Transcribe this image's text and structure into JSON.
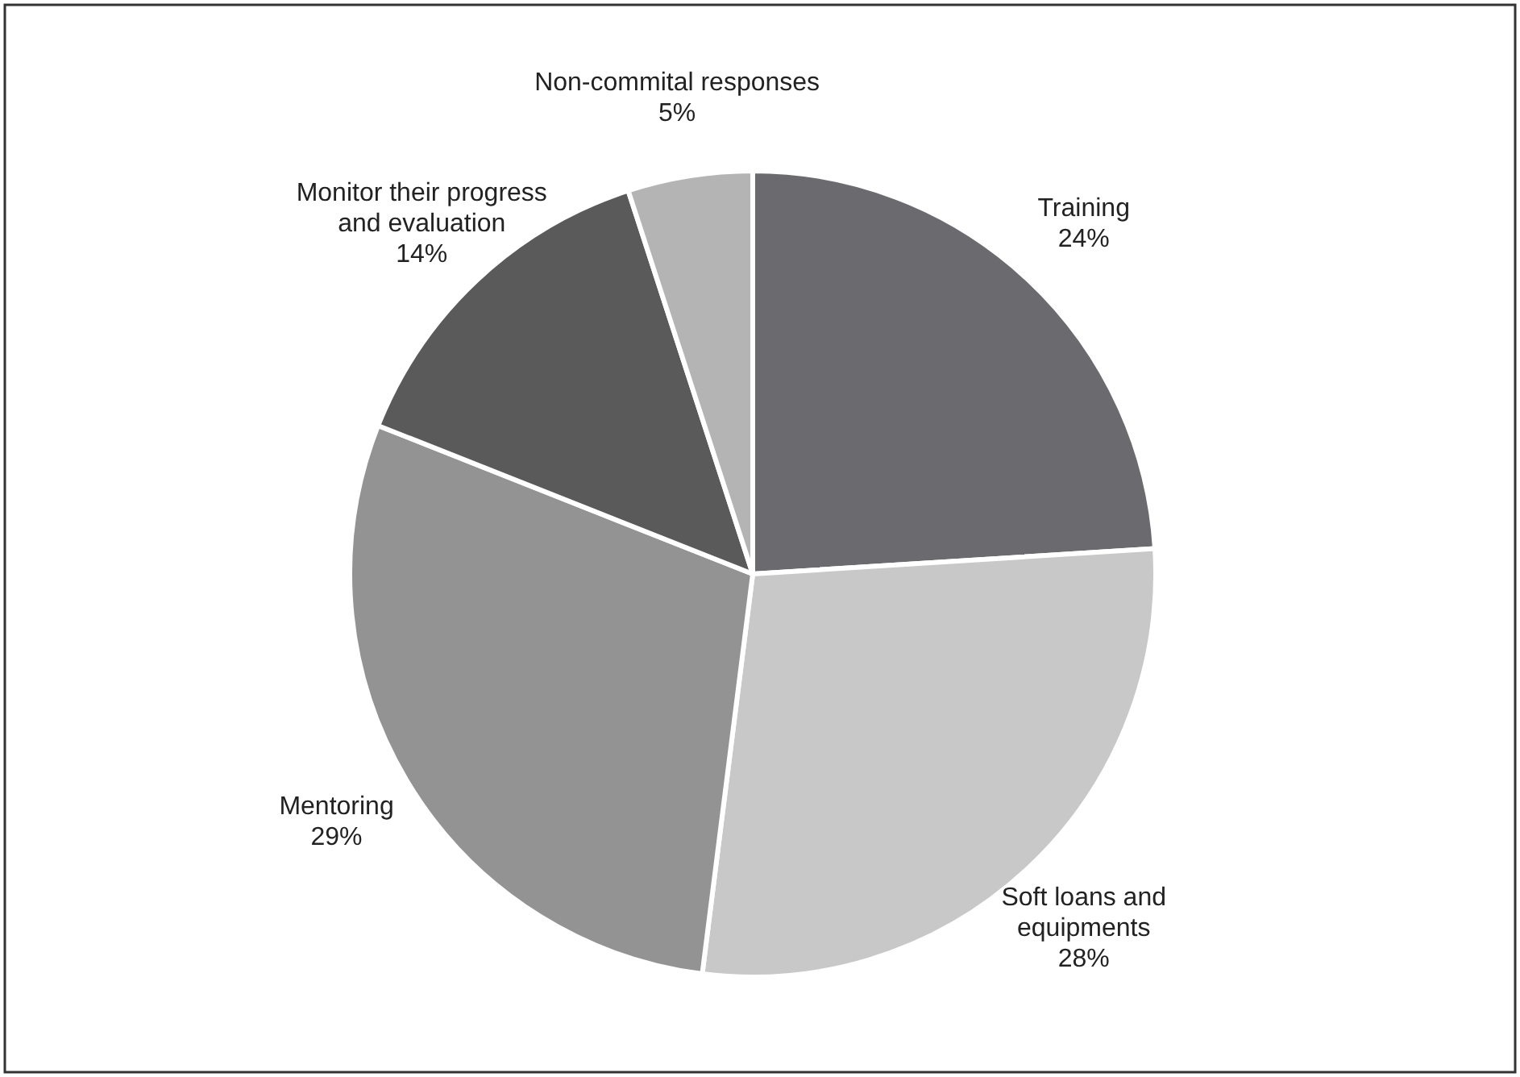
{
  "chart_data": {
    "type": "pie",
    "categories": [
      "Training",
      "Soft loans and equipments",
      "Mentoring",
      "Monitor their progress and evaluation",
      "Non-commital responses"
    ],
    "values": [
      24,
      28,
      29,
      14,
      5
    ],
    "colors": [
      "#6b6b6f",
      "#c8c8c8",
      "#939393",
      "#5a5a5a",
      "#b4b4b4"
    ],
    "value_labels": [
      "24%",
      "28%",
      "29%",
      "14%",
      "5%"
    ],
    "legend": false
  }
}
